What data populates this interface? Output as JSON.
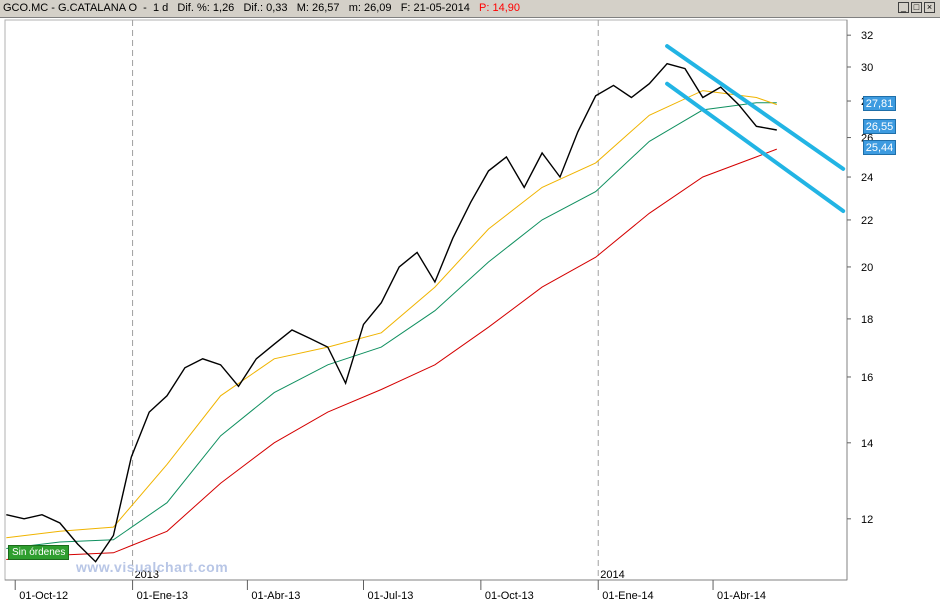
{
  "header": {
    "symbol": "GCO.MC - G.CATALANA O",
    "period": "1 d",
    "dif_pct_label": "Dif. %:",
    "dif_pct": "1,26",
    "dif_label": "Dif.:",
    "dif": "0,33",
    "max_label": "M:",
    "max": "26,57",
    "min_label": "m:",
    "min": "26,09",
    "date_label": "F:",
    "date": "21-05-2014",
    "p_label": "P:",
    "p": "14,90",
    "minimize_label": "_",
    "maximize_label": "□",
    "close_label": "×"
  },
  "badge_text": "Sin órdenes",
  "watermark": "www.visualchart.com",
  "price_badges": [
    {
      "value": "27,81",
      "price": 27.81
    },
    {
      "value": "26,55",
      "price": 26.55
    },
    {
      "value": "25,44",
      "price": 25.44
    }
  ],
  "colors": {
    "price": "#000000",
    "ma_short": "#f0b400",
    "ma_mid": "#109060",
    "ma_long": "#d40000",
    "channel": "#22b4e4",
    "badge": "#3d9be0",
    "order_badge": "#2f9e2f"
  },
  "chart_data": {
    "type": "line",
    "scale": "log",
    "ylim": [
      10.6,
      33
    ],
    "y_ticks": [
      12,
      14,
      16,
      18,
      20,
      22,
      24,
      26,
      28,
      30,
      32
    ],
    "x_ticks": [
      {
        "label": "01-Oct-12",
        "date": "2012-10-01"
      },
      {
        "label": "01-Ene-13",
        "date": "2013-01-01"
      },
      {
        "label": "01-Abr-13",
        "date": "2013-04-01"
      },
      {
        "label": "01-Jul-13",
        "date": "2013-07-01"
      },
      {
        "label": "01-Oct-13",
        "date": "2013-10-01"
      },
      {
        "label": "01-Ene-14",
        "date": "2014-01-01"
      },
      {
        "label": "01-Abr-14",
        "date": "2014-04-01"
      }
    ],
    "year_labels": [
      {
        "label": "2013",
        "date": "2013-01-01"
      },
      {
        "label": "2014",
        "date": "2014-01-01"
      }
    ],
    "xlim": [
      "2012-09-23",
      "2014-07-15"
    ],
    "series": [
      {
        "key": "price",
        "x": [
          "2012-09-24",
          "2012-10-08",
          "2012-10-22",
          "2012-11-05",
          "2012-11-19",
          "2012-12-03",
          "2012-12-17",
          "2012-12-31",
          "2013-01-14",
          "2013-01-28",
          "2013-02-11",
          "2013-02-25",
          "2013-03-11",
          "2013-03-25",
          "2013-04-08",
          "2013-04-22",
          "2013-05-06",
          "2013-05-20",
          "2013-06-03",
          "2013-06-17",
          "2013-07-01",
          "2013-07-15",
          "2013-07-29",
          "2013-08-12",
          "2013-08-26",
          "2013-09-09",
          "2013-09-23",
          "2013-10-07",
          "2013-10-21",
          "2013-11-04",
          "2013-11-18",
          "2013-12-02",
          "2013-12-16",
          "2013-12-30",
          "2014-01-13",
          "2014-01-27",
          "2014-02-10",
          "2014-02-24",
          "2014-03-10",
          "2014-03-24",
          "2014-04-07",
          "2014-04-21",
          "2014-05-05",
          "2014-05-21"
        ],
        "values": [
          12.1,
          12.0,
          12.1,
          11.9,
          11.4,
          11.0,
          11.6,
          13.6,
          14.9,
          15.4,
          16.3,
          16.6,
          16.4,
          15.7,
          16.6,
          17.1,
          17.6,
          17.3,
          17.0,
          15.8,
          17.8,
          18.6,
          20.0,
          20.6,
          19.4,
          21.2,
          22.8,
          24.3,
          25.0,
          23.5,
          25.2,
          24.0,
          26.3,
          28.3,
          28.9,
          28.2,
          29.0,
          30.2,
          29.9,
          28.2,
          28.8,
          27.8,
          26.6,
          26.4
        ]
      },
      {
        "key": "ma_short",
        "x": [
          "2012-09-24",
          "2012-11-05",
          "2012-12-17",
          "2013-01-28",
          "2013-03-11",
          "2013-04-22",
          "2013-06-03",
          "2013-07-15",
          "2013-08-26",
          "2013-10-07",
          "2013-11-18",
          "2013-12-30",
          "2014-02-10",
          "2014-03-24",
          "2014-05-05",
          "2014-05-21"
        ],
        "values": [
          11.55,
          11.7,
          11.8,
          13.4,
          15.4,
          16.6,
          17.0,
          17.5,
          19.2,
          21.6,
          23.5,
          24.7,
          27.2,
          28.6,
          28.2,
          27.8
        ]
      },
      {
        "key": "ma_mid",
        "x": [
          "2012-09-24",
          "2012-11-05",
          "2012-12-17",
          "2013-01-28",
          "2013-03-11",
          "2013-04-22",
          "2013-06-03",
          "2013-07-15",
          "2013-08-26",
          "2013-10-07",
          "2013-11-18",
          "2013-12-30",
          "2014-02-10",
          "2014-03-24",
          "2014-05-05",
          "2014-05-21"
        ],
        "values": [
          11.3,
          11.45,
          11.5,
          12.4,
          14.2,
          15.5,
          16.4,
          17.0,
          18.3,
          20.2,
          22.0,
          23.3,
          25.8,
          27.5,
          27.9,
          27.9
        ]
      },
      {
        "key": "ma_long",
        "x": [
          "2012-09-24",
          "2012-11-05",
          "2012-12-17",
          "2013-01-28",
          "2013-03-11",
          "2013-04-22",
          "2013-06-03",
          "2013-07-15",
          "2013-08-26",
          "2013-10-07",
          "2013-11-18",
          "2013-12-30",
          "2014-02-10",
          "2014-03-24",
          "2014-05-05",
          "2014-05-21"
        ],
        "values": [
          11.05,
          11.15,
          11.2,
          11.7,
          12.9,
          14.0,
          14.9,
          15.6,
          16.4,
          17.7,
          19.2,
          20.4,
          22.3,
          24.0,
          25.0,
          25.4
        ]
      }
    ],
    "channel_lines": [
      {
        "x": [
          "2014-02-24",
          "2014-07-12"
        ],
        "values": [
          31.3,
          24.4
        ]
      },
      {
        "x": [
          "2014-02-24",
          "2014-07-12"
        ],
        "values": [
          29.0,
          22.4
        ]
      }
    ]
  }
}
